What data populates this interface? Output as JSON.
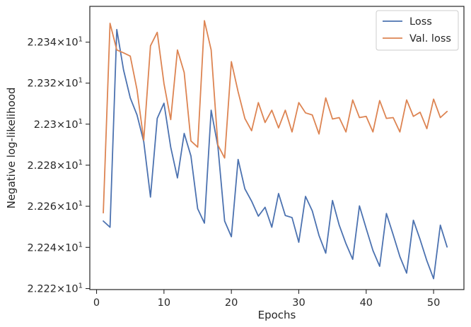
{
  "chart_data": {
    "type": "line",
    "xlabel": "Epochs",
    "ylabel": "Negative log-likelihood",
    "xlim": [
      -1,
      54.5
    ],
    "ylim": [
      22.2195,
      22.3575
    ],
    "yscale": "log",
    "grid": false,
    "legend_position": "top-right",
    "x_ticks": [
      0,
      10,
      20,
      30,
      40,
      50
    ],
    "x_tick_labels": [
      "0",
      "10",
      "20",
      "30",
      "40",
      "50"
    ],
    "y_ticks": [
      22.22,
      22.24,
      22.26,
      22.28,
      22.3,
      22.32,
      22.34
    ],
    "y_tick_labels": [
      {
        "mantissa": "2.222",
        "times": "×",
        "base": "10",
        "exp": "1"
      },
      {
        "mantissa": "2.224",
        "times": "×",
        "base": "10",
        "exp": "1"
      },
      {
        "mantissa": "2.226",
        "times": "×",
        "base": "10",
        "exp": "1"
      },
      {
        "mantissa": "2.228",
        "times": "×",
        "base": "10",
        "exp": "1"
      },
      {
        "mantissa": "2.23",
        "times": "×",
        "base": "10",
        "exp": "1"
      },
      {
        "mantissa": "2.232",
        "times": "×",
        "base": "10",
        "exp": "1"
      },
      {
        "mantissa": "2.234",
        "times": "×",
        "base": "10",
        "exp": "1"
      }
    ],
    "x": [
      1,
      2,
      3,
      4,
      5,
      6,
      7,
      8,
      9,
      10,
      11,
      12,
      13,
      14,
      15,
      16,
      17,
      18,
      19,
      20,
      21,
      22,
      23,
      24,
      25,
      26,
      27,
      28,
      29,
      30,
      31,
      32,
      33,
      34,
      35,
      36,
      37,
      38,
      39,
      40,
      41,
      42,
      43,
      44,
      45,
      46,
      47,
      48,
      49,
      50,
      51,
      52
    ],
    "series": [
      {
        "name": "Loss",
        "color": "#4c72b0",
        "values": [
          22.2528,
          22.2498,
          22.3462,
          22.3265,
          22.3128,
          22.3045,
          22.2915,
          22.2645,
          22.3028,
          22.3102,
          22.2888,
          22.2738,
          22.2955,
          22.2845,
          22.2588,
          22.2518,
          22.3068,
          22.2892,
          22.2528,
          22.2452,
          22.2828,
          22.2685,
          22.2625,
          22.2552,
          22.2595,
          22.2498,
          22.2662,
          22.2555,
          22.2545,
          22.2425,
          22.2648,
          22.2578,
          22.2458,
          22.2372,
          22.2628,
          22.2508,
          22.2418,
          22.2342,
          22.2602,
          22.2492,
          22.2385,
          22.2308,
          22.2565,
          22.2462,
          22.2355,
          22.2275,
          22.2532,
          22.2438,
          22.2335,
          22.2248,
          22.2508,
          22.2402
        ]
      },
      {
        "name": "Val. loss",
        "color": "#dd8452",
        "values": [
          22.2568,
          22.3492,
          22.3362,
          22.3348,
          22.3332,
          22.3168,
          22.2922,
          22.3382,
          22.3448,
          22.3198,
          22.3022,
          22.3362,
          22.3252,
          22.2918,
          22.2888,
          22.3505,
          22.3362,
          22.2898,
          22.2835,
          22.3305,
          22.3158,
          22.3028,
          22.2968,
          22.3105,
          22.3008,
          22.3068,
          22.2982,
          22.3068,
          22.2962,
          22.3105,
          22.3055,
          22.3045,
          22.2952,
          22.3128,
          22.3025,
          22.3032,
          22.2962,
          22.3118,
          22.3032,
          22.3038,
          22.2962,
          22.3115,
          22.3028,
          22.3032,
          22.2962,
          22.3118,
          22.3038,
          22.3058,
          22.2978,
          22.3122,
          22.3032,
          22.3062
        ]
      }
    ]
  }
}
